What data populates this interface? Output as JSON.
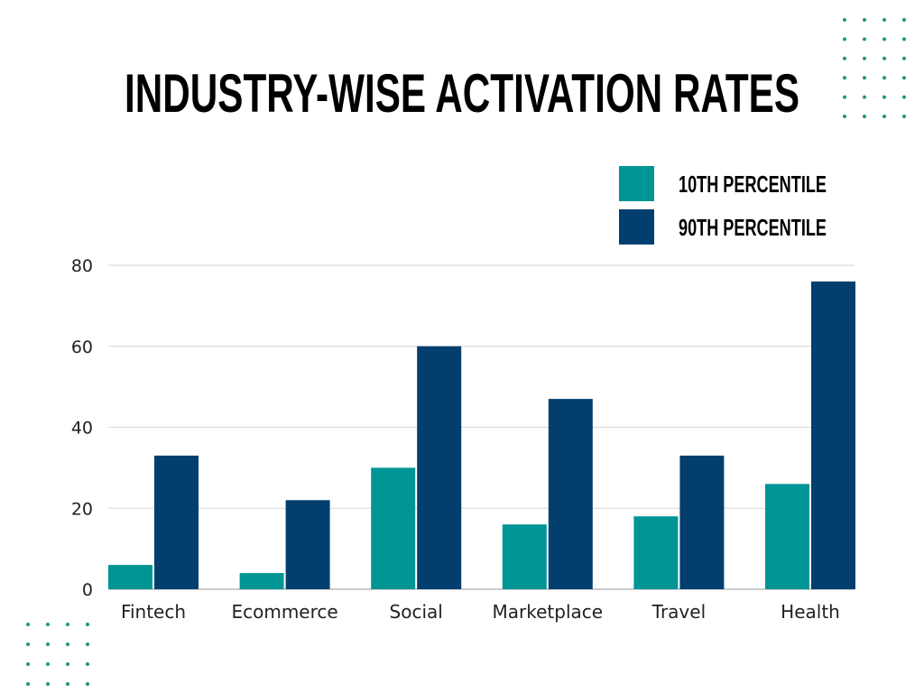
{
  "chart_data": {
    "type": "bar",
    "title": "INDUSTRY-WISE ACTIVATION RATES",
    "xlabel": "",
    "ylabel": "",
    "categories": [
      "Fintech",
      "Ecommerce",
      "Social",
      "Marketplace",
      "Travel",
      "Health"
    ],
    "series": [
      {
        "name": "10TH PERCENTILE",
        "values": [
          6,
          4,
          30,
          16,
          18,
          26
        ],
        "color": "#009595"
      },
      {
        "name": "90TH PERCENTILE",
        "values": [
          33,
          22,
          60,
          47,
          33,
          76
        ],
        "color": "#033f6e"
      }
    ],
    "ylim": [
      0,
      80
    ],
    "yticks": [
      0,
      20,
      40,
      60,
      80
    ],
    "grid": true,
    "legend_position": "top-right",
    "decoration_color": "#1f9a6b"
  }
}
